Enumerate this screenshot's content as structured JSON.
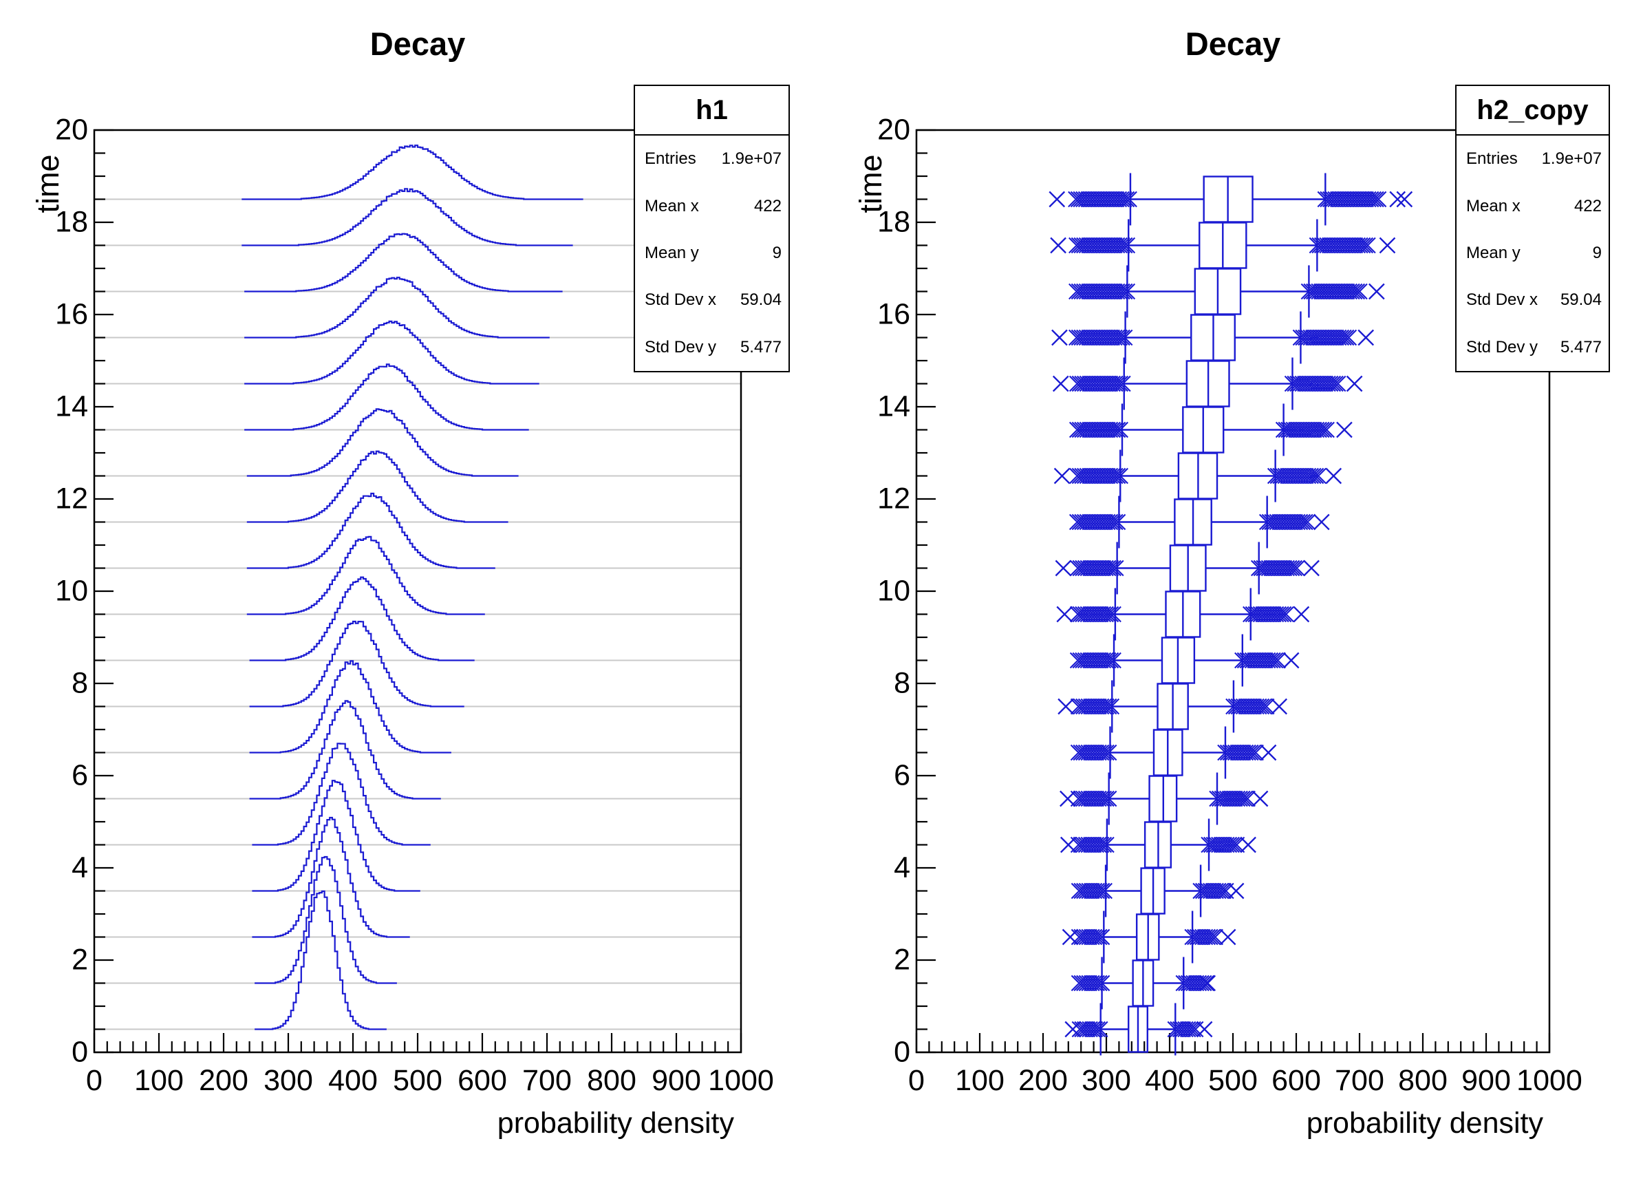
{
  "colors": {
    "series_blue": "#1a1ad2",
    "gridline": "#c9c9c9",
    "frame": "#000000",
    "background": "#ffffff",
    "text": "#000000"
  },
  "axes": {
    "x_label": "probability density",
    "y_label": "time",
    "x_ticks": [
      0,
      100,
      200,
      300,
      400,
      500,
      600,
      700,
      800,
      900,
      1000
    ],
    "y_ticks": [
      0,
      2,
      4,
      6,
      8,
      10,
      12,
      14,
      16,
      18,
      20
    ],
    "x_range": [
      0,
      1000
    ],
    "y_range": [
      0,
      20
    ]
  },
  "stats": [
    {
      "title": "h1",
      "rows": [
        {
          "label": "Entries",
          "value": "1.9e+07"
        },
        {
          "label": "Mean x",
          "value": "422"
        },
        {
          "label": "Mean y",
          "value": "9"
        },
        {
          "label": "Std Dev x",
          "value": "59.04"
        },
        {
          "label": "Std Dev y",
          "value": "5.477"
        }
      ]
    },
    {
      "title": "h2_copy",
      "rows": [
        {
          "label": "Entries",
          "value": "1.9e+07"
        },
        {
          "label": "Mean x",
          "value": "422"
        },
        {
          "label": "Mean y",
          "value": "9"
        },
        {
          "label": "Std Dev x",
          "value": "59.04"
        },
        {
          "label": "Std Dev y",
          "value": "5.477"
        }
      ]
    }
  ],
  "chart_data": [
    {
      "type": "ridgeline-histograms",
      "title": "Decay",
      "xlabel": "probability density",
      "ylabel": "time",
      "xlim": [
        0,
        1000
      ],
      "ylim": [
        0,
        20
      ],
      "grid": "horizontal-row-baselines",
      "bin_width": 4,
      "rows": [
        {
          "time": 0.5,
          "mean": 350.0,
          "sigma": 22.0,
          "peak_height": 3.0,
          "data_min": 249,
          "data_max": 451
        },
        {
          "time": 1.5,
          "mean": 357.9,
          "sigma": 23.95,
          "peak_height": 2.76,
          "data_min": 248,
          "data_max": 468
        },
        {
          "time": 2.5,
          "mean": 365.8,
          "sigma": 25.9,
          "peak_height": 2.55,
          "data_min": 247,
          "data_max": 485
        },
        {
          "time": 3.5,
          "mean": 373.7,
          "sigma": 27.85,
          "peak_height": 2.37,
          "data_min": 246,
          "data_max": 502
        },
        {
          "time": 4.5,
          "mean": 381.6,
          "sigma": 29.8,
          "peak_height": 2.21,
          "data_min": 245,
          "data_max": 519
        },
        {
          "time": 5.5,
          "mean": 389.5,
          "sigma": 31.75,
          "peak_height": 2.08,
          "data_min": 243,
          "data_max": 536
        },
        {
          "time": 6.5,
          "mean": 397.4,
          "sigma": 33.7,
          "peak_height": 1.96,
          "data_min": 242,
          "data_max": 552
        },
        {
          "time": 7.5,
          "mean": 405.3,
          "sigma": 35.65,
          "peak_height": 1.85,
          "data_min": 241,
          "data_max": 569
        },
        {
          "time": 8.5,
          "mean": 413.2,
          "sigma": 37.6,
          "peak_height": 1.76,
          "data_min": 240,
          "data_max": 586
        },
        {
          "time": 9.5,
          "mean": 421.1,
          "sigma": 39.55,
          "peak_height": 1.67,
          "data_min": 239,
          "data_max": 603
        },
        {
          "time": 10.5,
          "mean": 429.0,
          "sigma": 41.5,
          "peak_height": 1.59,
          "data_min": 238,
          "data_max": 620
        },
        {
          "time": 11.5,
          "mean": 436.9,
          "sigma": 43.45,
          "peak_height": 1.52,
          "data_min": 237,
          "data_max": 637
        },
        {
          "time": 12.5,
          "mean": 444.8,
          "sigma": 45.4,
          "peak_height": 1.45,
          "data_min": 236,
          "data_max": 654
        },
        {
          "time": 13.5,
          "mean": 452.7,
          "sigma": 47.35,
          "peak_height": 1.39,
          "data_min": 235,
          "data_max": 671
        },
        {
          "time": 14.5,
          "mean": 460.6,
          "sigma": 49.3,
          "peak_height": 1.34,
          "data_min": 234,
          "data_max": 687
        },
        {
          "time": 15.5,
          "mean": 468.5,
          "sigma": 51.25,
          "peak_height": 1.29,
          "data_min": 233,
          "data_max": 704
        },
        {
          "time": 16.5,
          "mean": 476.4,
          "sigma": 53.2,
          "peak_height": 1.24,
          "data_min": 232,
          "data_max": 721
        },
        {
          "time": 17.5,
          "mean": 484.3,
          "sigma": 55.15,
          "peak_height": 1.2,
          "data_min": 231,
          "data_max": 738
        },
        {
          "time": 18.5,
          "mean": 492.2,
          "sigma": 57.1,
          "peak_height": 1.16,
          "data_min": 230,
          "data_max": 755
        }
      ]
    },
    {
      "type": "box",
      "title": "Decay",
      "xlabel": "probability density",
      "ylabel": "time",
      "xlim": [
        0,
        1000
      ],
      "ylim": [
        0,
        20
      ],
      "grid": "off",
      "outlier_marker": "x-cross",
      "rows": [
        {
          "time": 0.5,
          "median": 350,
          "q1": 335,
          "q3": 365,
          "whisker_low": 291,
          "whisker_high": 409,
          "outlier_min": 258,
          "outlier_max": 442,
          "far_outliers": [
            247,
            455
          ]
        },
        {
          "time": 1.5,
          "median": 358,
          "q1": 342,
          "q3": 374,
          "whisker_low": 293,
          "whisker_high": 422,
          "outlier_min": 257,
          "outlier_max": 458,
          "far_outliers": [
            460
          ]
        },
        {
          "time": 2.5,
          "median": 366,
          "q1": 348,
          "q3": 383,
          "whisker_low": 296,
          "whisker_high": 436,
          "outlier_min": 257,
          "outlier_max": 475,
          "far_outliers": [
            243,
            492
          ]
        },
        {
          "time": 3.5,
          "median": 374,
          "q1": 355,
          "q3": 392,
          "whisker_low": 299,
          "whisker_high": 449,
          "outlier_min": 257,
          "outlier_max": 491,
          "far_outliers": [
            505
          ]
        },
        {
          "time": 4.5,
          "median": 382,
          "q1": 361,
          "q3": 402,
          "whisker_low": 301,
          "whisker_high": 462,
          "outlier_min": 256,
          "outlier_max": 507,
          "far_outliers": [
            240,
            524
          ]
        },
        {
          "time": 5.5,
          "median": 390,
          "q1": 368,
          "q3": 411,
          "whisker_low": 304,
          "whisker_high": 475,
          "outlier_min": 256,
          "outlier_max": 523,
          "far_outliers": [
            239,
            543
          ]
        },
        {
          "time": 6.5,
          "median": 397,
          "q1": 375,
          "q3": 420,
          "whisker_low": 306,
          "whisker_high": 488,
          "outlier_min": 256,
          "outlier_max": 539,
          "far_outliers": [
            556
          ]
        },
        {
          "time": 7.5,
          "median": 405,
          "q1": 381,
          "q3": 429,
          "whisker_low": 309,
          "whisker_high": 501,
          "outlier_min": 256,
          "outlier_max": 555,
          "far_outliers": [
            236,
            573
          ]
        },
        {
          "time": 8.5,
          "median": 413,
          "q1": 388,
          "q3": 439,
          "whisker_low": 312,
          "whisker_high": 515,
          "outlier_min": 255,
          "outlier_max": 571,
          "far_outliers": [
            592
          ]
        },
        {
          "time": 9.5,
          "median": 421,
          "q1": 394,
          "q3": 448,
          "whisker_low": 314,
          "whisker_high": 528,
          "outlier_min": 255,
          "outlier_max": 587,
          "far_outliers": [
            234,
            608
          ]
        },
        {
          "time": 10.5,
          "median": 429,
          "q1": 401,
          "q3": 457,
          "whisker_low": 317,
          "whisker_high": 541,
          "outlier_min": 255,
          "outlier_max": 603,
          "far_outliers": [
            232,
            624
          ]
        },
        {
          "time": 11.5,
          "median": 437,
          "q1": 408,
          "q3": 466,
          "whisker_low": 320,
          "whisker_high": 554,
          "outlier_min": 254,
          "outlier_max": 619,
          "far_outliers": [
            640
          ]
        },
        {
          "time": 12.5,
          "median": 445,
          "q1": 414,
          "q3": 475,
          "whisker_low": 322,
          "whisker_high": 567,
          "outlier_min": 254,
          "outlier_max": 635,
          "far_outliers": [
            230,
            659
          ]
        },
        {
          "time": 13.5,
          "median": 453,
          "q1": 421,
          "q3": 485,
          "whisker_low": 325,
          "whisker_high": 580,
          "outlier_min": 254,
          "outlier_max": 651,
          "far_outliers": [
            676
          ]
        },
        {
          "time": 14.5,
          "median": 461,
          "q1": 427,
          "q3": 494,
          "whisker_low": 328,
          "whisker_high": 594,
          "outlier_min": 254,
          "outlier_max": 668,
          "far_outliers": [
            228,
            692
          ]
        },
        {
          "time": 15.5,
          "median": 469,
          "q1": 434,
          "q3": 503,
          "whisker_low": 330,
          "whisker_high": 607,
          "outlier_min": 253,
          "outlier_max": 684,
          "far_outliers": [
            226,
            710
          ]
        },
        {
          "time": 16.5,
          "median": 476,
          "q1": 440,
          "q3": 512,
          "whisker_low": 333,
          "whisker_high": 620,
          "outlier_min": 253,
          "outlier_max": 700,
          "far_outliers": [
            727
          ]
        },
        {
          "time": 17.5,
          "median": 484,
          "q1": 447,
          "q3": 521,
          "whisker_low": 335,
          "whisker_high": 633,
          "outlier_min": 253,
          "outlier_max": 716,
          "far_outliers": [
            224,
            744
          ]
        },
        {
          "time": 18.5,
          "median": 492,
          "q1": 454,
          "q3": 531,
          "whisker_low": 338,
          "whisker_high": 646,
          "outlier_min": 252,
          "outlier_max": 732,
          "far_outliers": [
            222,
            760,
            771
          ]
        }
      ]
    }
  ]
}
